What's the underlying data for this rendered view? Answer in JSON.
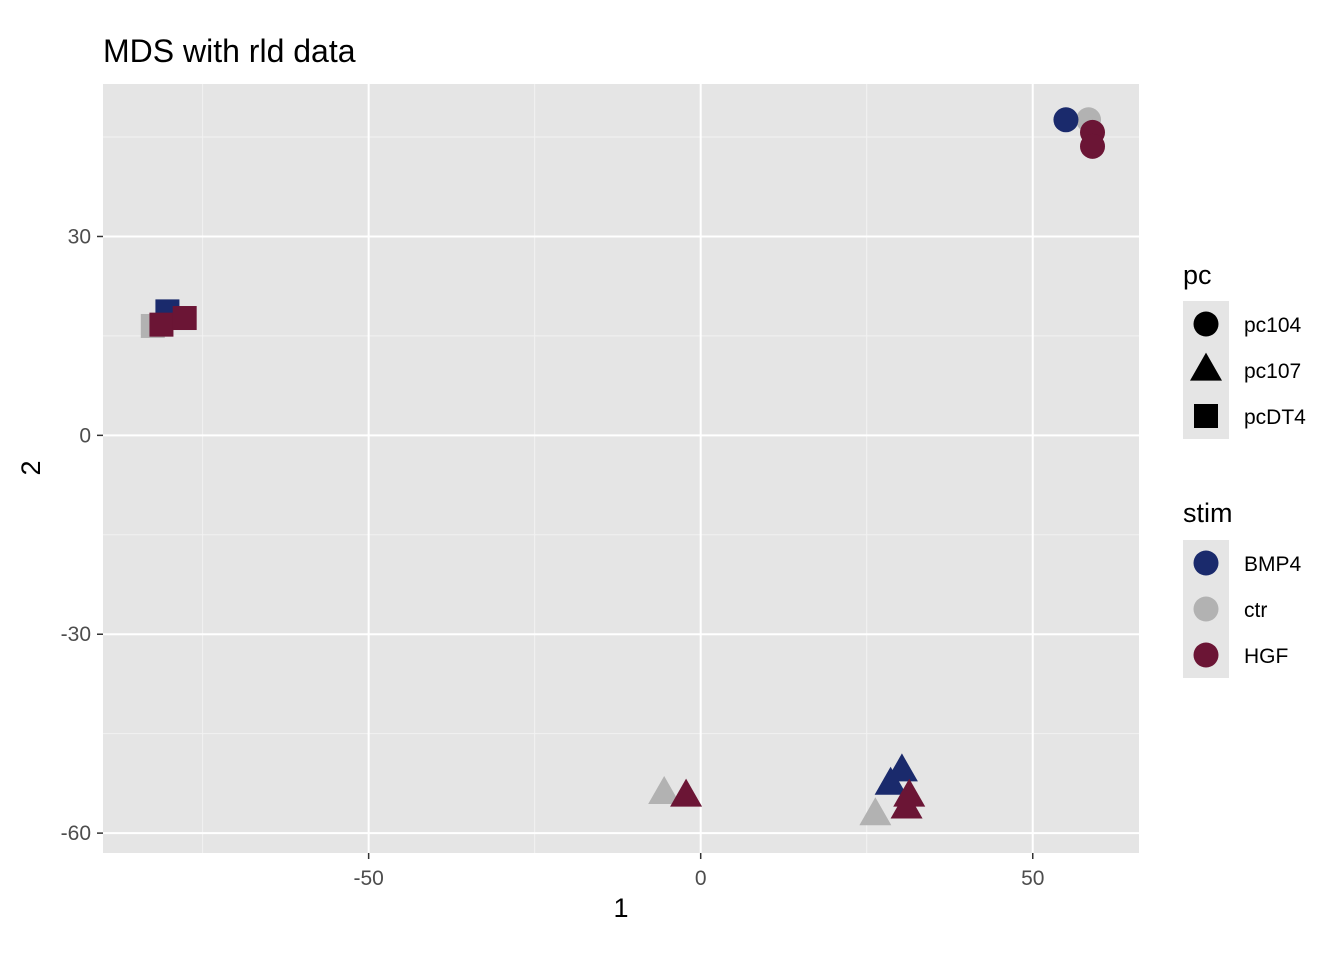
{
  "chart_data": {
    "type": "scatter",
    "title": "MDS with rld data",
    "xlabel": "1",
    "ylabel": "2",
    "xlim": [
      -90,
      66
    ],
    "ylim": [
      -63,
      53
    ],
    "x_ticks": [
      -50,
      0,
      50
    ],
    "x_tick_labels": [
      "-50",
      "0",
      "50"
    ],
    "y_ticks": [
      -60,
      -30,
      0,
      30
    ],
    "y_tick_labels": [
      "-60",
      "-30",
      "0",
      "30"
    ],
    "grid": true,
    "background": "#e5e5e5",
    "legend_position": "right",
    "legends": [
      {
        "title": "pc",
        "entries": [
          {
            "label": "pc104",
            "shape": "circle"
          },
          {
            "label": "pc107",
            "shape": "triangle"
          },
          {
            "label": "pcDT4",
            "shape": "square"
          }
        ]
      },
      {
        "title": "stim",
        "entries": [
          {
            "label": "BMP4",
            "color": "#1a2a6c"
          },
          {
            "label": "ctr",
            "color": "#b2b2b2"
          },
          {
            "label": "HGF",
            "color": "#6b1535"
          }
        ]
      }
    ],
    "points": [
      {
        "x": -82.5,
        "y": 16.5,
        "pc": "pcDT4",
        "stim": "ctr"
      },
      {
        "x": -80.3,
        "y": 18.7,
        "pc": "pcDT4",
        "stim": "BMP4"
      },
      {
        "x": -81.2,
        "y": 16.7,
        "pc": "pcDT4",
        "stim": "HGF"
      },
      {
        "x": -77.7,
        "y": 17.7,
        "pc": "pcDT4",
        "stim": "HGF"
      },
      {
        "x": 58.4,
        "y": 47.6,
        "pc": "pc104",
        "stim": "ctr"
      },
      {
        "x": 55.0,
        "y": 47.6,
        "pc": "pc104",
        "stim": "BMP4"
      },
      {
        "x": 59.0,
        "y": 45.7,
        "pc": "pc104",
        "stim": "HGF"
      },
      {
        "x": 59.0,
        "y": 43.6,
        "pc": "pc104",
        "stim": "HGF"
      },
      {
        "x": -5.5,
        "y": -54.0,
        "pc": "pc107",
        "stim": "ctr"
      },
      {
        "x": -2.2,
        "y": -54.4,
        "pc": "pc107",
        "stim": "HGF"
      },
      {
        "x": 26.3,
        "y": -57.2,
        "pc": "pc107",
        "stim": "ctr"
      },
      {
        "x": 28.6,
        "y": -52.6,
        "pc": "pc107",
        "stim": "BMP4"
      },
      {
        "x": 30.3,
        "y": -50.6,
        "pc": "pc107",
        "stim": "BMP4"
      },
      {
        "x": 31.4,
        "y": -54.4,
        "pc": "pc107",
        "stim": "HGF"
      },
      {
        "x": 31.0,
        "y": -56.2,
        "pc": "pc107",
        "stim": "HGF"
      }
    ]
  }
}
